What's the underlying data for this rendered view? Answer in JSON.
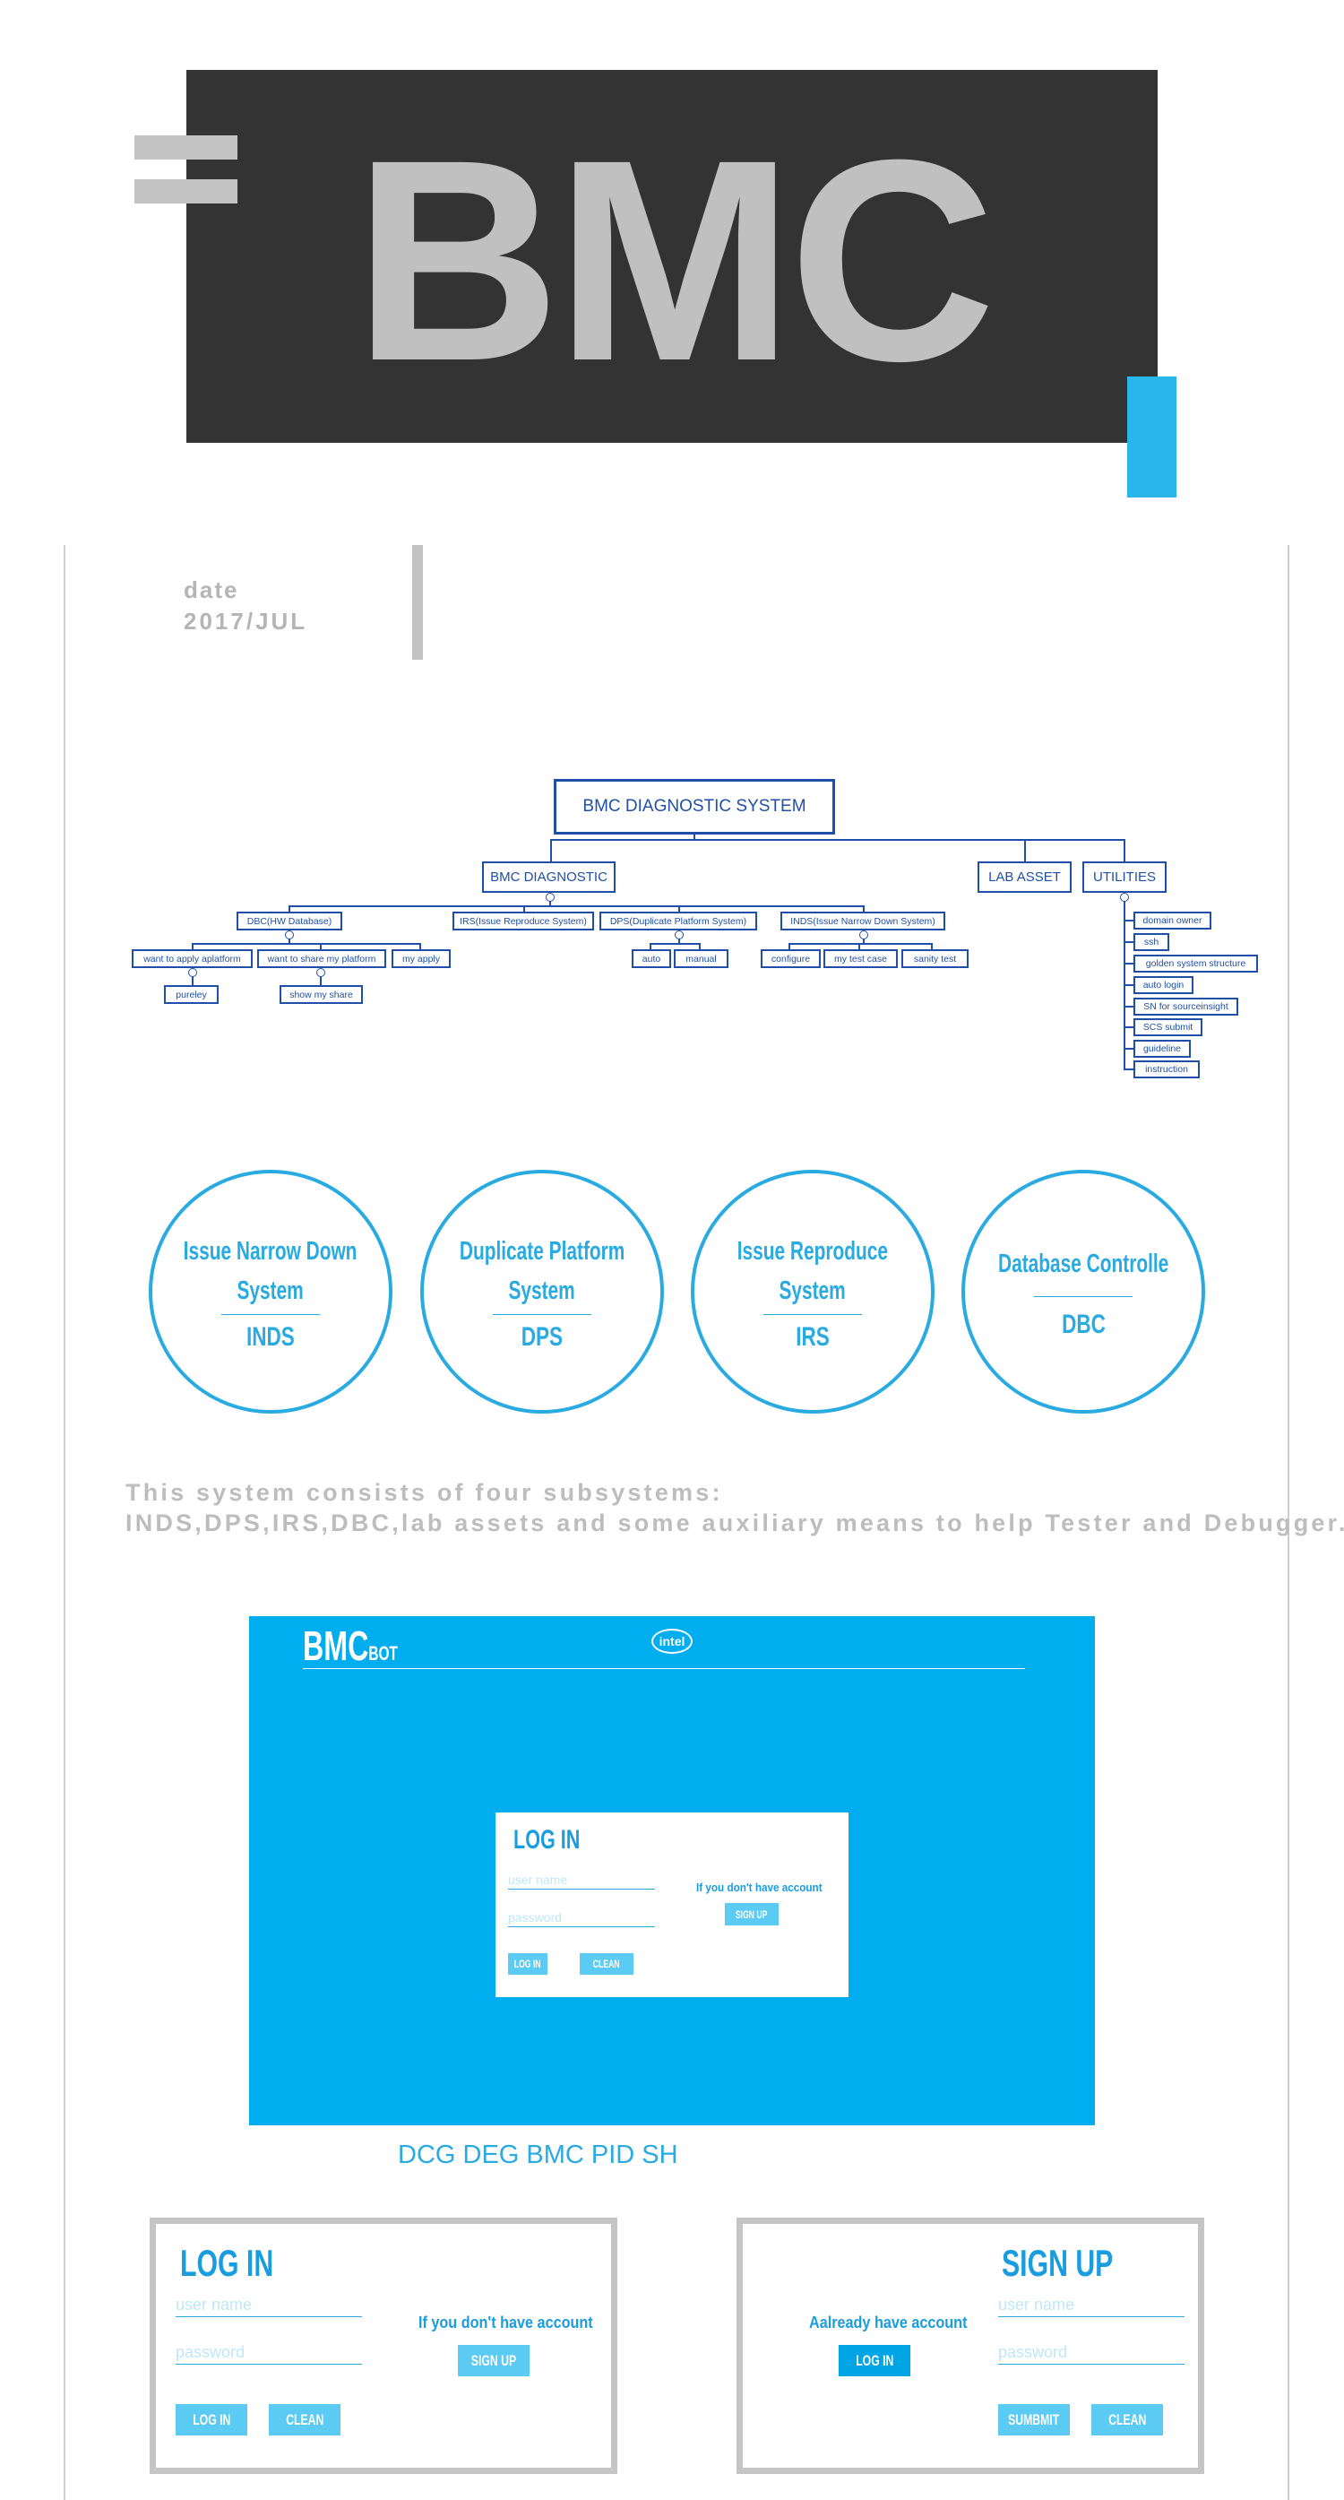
{
  "header": {
    "title": "BMC"
  },
  "date": {
    "label": "date",
    "value": "2017/JUL"
  },
  "org_chart": {
    "root": "BMC DIAGNOSTIC SYSTEM",
    "level1": [
      "BMC DIAGNOSTIC",
      "LAB ASSET",
      "UTILITIES"
    ],
    "level2": [
      "DBC(HW Database)",
      "IRS(Issue Reproduce System)",
      "DPS(Duplicate Platform System)",
      "INDS(Issue Narrow Down System)"
    ],
    "dbc_children": [
      "want to apply aplatform",
      "want to share my platform",
      "my apply"
    ],
    "dbc_grandchildren": [
      "pureley",
      "show my share"
    ],
    "dps_children": [
      "auto",
      "manual"
    ],
    "inds_children": [
      "configure",
      "my test case",
      "sanity test"
    ],
    "utilities": [
      "domain owner",
      "ssh",
      "golden system structure",
      "auto login",
      "SN for sourceinsight",
      "SCS submit",
      "guideline",
      "instruction"
    ]
  },
  "subsystems": [
    {
      "title_line1": "Issue Narrow Down",
      "title_line2": "System",
      "abbr": "INDS"
    },
    {
      "title_line1": "Duplicate Platform",
      "title_line2": "System",
      "abbr": "DPS"
    },
    {
      "title_line1": "Issue Reproduce",
      "title_line2": "System",
      "abbr": "IRS"
    },
    {
      "title_line1": "Database Controlle",
      "title_line2": "",
      "abbr": "DBC"
    }
  ],
  "description": {
    "line1": "This system consists of four subsystems:",
    "line2": "INDS,DPS,IRS,DBC,lab assets and some auxiliary means to help Tester and Debugger."
  },
  "app": {
    "logo": "BMC",
    "logo_sub": "BOT",
    "brand": "intel",
    "login": {
      "title": "LOG IN",
      "username_placeholder": "user name",
      "password_placeholder": "password",
      "login_button": "LOG IN",
      "clean_button": "CLEAN",
      "no_account_text": "If you don't have account",
      "signup_button": "SIGN UP"
    }
  },
  "caption": "DCG DEG BMC PID SH",
  "login_card": {
    "title": "LOG IN",
    "username_placeholder": "user name",
    "password_placeholder": "password",
    "login_button": "LOG IN",
    "clean_button": "CLEAN",
    "no_account_text": "If you don't have account",
    "signup_button": "SIGN UP"
  },
  "signup_card": {
    "title": "SIGN UP",
    "have_account_text": "Aalready have account",
    "login_button": "LOG IN",
    "username_placeholder": "user name",
    "password_placeholder": "password",
    "submit_button": "SUMBMIT",
    "clean_button": "CLEAN"
  },
  "colors": {
    "accent_blue": "#29aae1",
    "app_blue": "#00adee",
    "header_dark": "#333333",
    "header_text": "#c0c0c0",
    "chart_navy": "#1f4fa8",
    "muted_gray": "#bdbdbd"
  }
}
